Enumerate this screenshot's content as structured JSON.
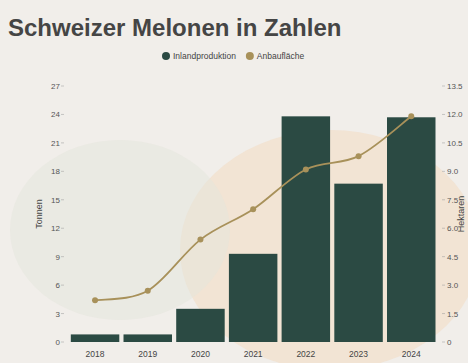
{
  "chart_data": {
    "type": "bar",
    "title": "Schweizer Melonen in Zahlen",
    "categories": [
      "2018",
      "2019",
      "2020",
      "2021",
      "2022",
      "2023",
      "2024"
    ],
    "series": [
      {
        "name": "Inlandproduktion",
        "type": "bar",
        "color": "#2b4a43",
        "values": [
          0.8,
          0.8,
          3.5,
          9.3,
          23.8,
          16.7,
          23.7
        ]
      },
      {
        "name": "Anbaufläche",
        "type": "line",
        "color": "#a8915a",
        "axis": "y2",
        "marker": "circle",
        "line_style": "solid",
        "values": [
          2.2,
          2.7,
          5.4,
          7.0,
          9.1,
          9.8,
          11.9
        ]
      }
    ],
    "y_label": "Tonnen",
    "y2_label": "Hektaren",
    "ylim": [
      0,
      27
    ],
    "yticks": [
      0,
      3,
      6,
      9,
      12,
      15,
      18,
      21,
      24,
      27
    ],
    "y2lim": [
      0,
      13.5
    ],
    "y2ticks": [
      0,
      1.5,
      {
        "value": 3,
        "label": "3.0"
      },
      4.5,
      {
        "value": 6,
        "label": "6.0"
      },
      7.5,
      {
        "value": 9,
        "label": "9.0"
      },
      10.5,
      {
        "value": 12,
        "label": "12.0"
      },
      13.5
    ],
    "legend": "top",
    "grid": false
  }
}
